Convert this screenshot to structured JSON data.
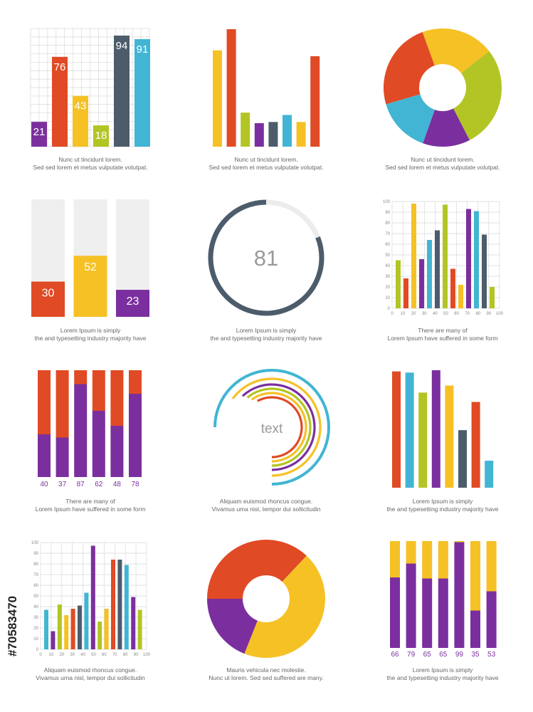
{
  "colors": {
    "purple": "#7b2f9e",
    "red": "#e04a25",
    "yellow": "#f5c125",
    "green": "#b3c524",
    "slate": "#4c5c6b",
    "blue": "#41b5d3",
    "track": "#efefef",
    "grid": "#d8d8d8"
  },
  "stock_id": "#70583470",
  "chart_data": [
    {
      "type": "bar",
      "title": "",
      "values": [
        21,
        76,
        43,
        18,
        94,
        91
      ],
      "labels": [
        "21",
        "76",
        "43",
        "18",
        "94",
        "91"
      ],
      "colors": [
        "purple",
        "red",
        "yellow",
        "green",
        "slate",
        "blue"
      ],
      "ylim": [
        0,
        100
      ],
      "grid": true,
      "caption": [
        "Nunc ut tincidunt lorem.",
        "Sed sed lorem et metus vulputate volutpat."
      ]
    },
    {
      "type": "bar",
      "title": "",
      "values": [
        82,
        100,
        29,
        20,
        21,
        27,
        21,
        77
      ],
      "colors": [
        "yellow",
        "red",
        "green",
        "purple",
        "slate",
        "blue",
        "yellow",
        "red"
      ],
      "ylim": [
        0,
        100
      ],
      "grid": false,
      "caption": [
        "Nunc ut tincidunt lorem.",
        "Sed sed lorem et metus vulputate volutpat."
      ]
    },
    {
      "type": "pie",
      "title": "",
      "donut": true,
      "values": [
        20,
        28,
        13,
        15,
        24
      ],
      "colors": [
        "yellow",
        "green",
        "purple",
        "blue",
        "red"
      ],
      "caption": [
        "Nunc ut tincidunt lorem.",
        "Sed sed lorem et metus vulputate volutpat."
      ]
    },
    {
      "type": "bar",
      "title": "",
      "values": [
        30,
        52,
        23
      ],
      "labels": [
        "30",
        "52",
        "23"
      ],
      "colors": [
        "red",
        "yellow",
        "purple"
      ],
      "ylim": [
        0,
        100
      ],
      "caption": [
        "Lorem Ipsum is simply",
        "the  and typesetting industry majority have"
      ]
    },
    {
      "type": "pie",
      "title": "",
      "gauge": true,
      "value": 81,
      "label": "81",
      "color": "slate",
      "caption": [
        "Lorem Ipsum is simply",
        "the  and typesetting industry majority have"
      ]
    },
    {
      "type": "bar",
      "title": "",
      "values": [
        45,
        28,
        98,
        46,
        64,
        73,
        97,
        37,
        22,
        93,
        91,
        69,
        20
      ],
      "colors": [
        "green",
        "red",
        "yellow",
        "purple",
        "blue",
        "slate",
        "green",
        "red",
        "yellow",
        "purple",
        "blue",
        "slate",
        "green"
      ],
      "xlim": [
        0,
        100
      ],
      "xticks": [
        "0",
        "10",
        "20",
        "30",
        "40",
        "50",
        "60",
        "70",
        "80",
        "90",
        "100"
      ],
      "ylim": [
        0,
        100
      ],
      "yticks": [
        "0",
        "10",
        "20",
        "30",
        "40",
        "50",
        "60",
        "70",
        "80",
        "90",
        "100"
      ],
      "grid": true,
      "caption": [
        "There are many  of",
        "Lorem Ipsum  have suffered  in some form"
      ]
    },
    {
      "type": "bar",
      "title": "",
      "stacked": true,
      "categories": [
        "40",
        "37",
        "87",
        "62",
        "48",
        "78"
      ],
      "series": [
        {
          "color": "purple",
          "values": [
            40,
            37,
            87,
            62,
            48,
            78
          ]
        },
        {
          "color": "red",
          "values": [
            60,
            63,
            13,
            38,
            52,
            22
          ]
        }
      ],
      "ylim": [
        0,
        100
      ],
      "caption": [
        "There are many  of",
        "Lorem Ipsum  have suffered  in some form"
      ]
    },
    {
      "type": "pie",
      "title": "",
      "radial": true,
      "label": "text",
      "values": [
        75,
        65,
        62,
        61,
        60,
        58
      ],
      "colors": [
        "blue",
        "yellow",
        "purple",
        "green",
        "yellow",
        "red"
      ],
      "caption": [
        "Aliquam euismod rhoncus congue.",
        "Vivamus uma nisl,  tempor dui sollicitudin"
      ]
    },
    {
      "type": "bar",
      "title": "",
      "values": [
        99,
        98,
        81,
        100,
        87,
        49,
        73,
        23
      ],
      "colors": [
        "red",
        "blue",
        "green",
        "purple",
        "yellow",
        "slate",
        "red",
        "blue"
      ],
      "ylim": [
        0,
        100
      ],
      "caption": [
        "Lorem Ipsum is simply",
        "the  and typesetting industry majority have"
      ]
    },
    {
      "type": "bar",
      "title": "",
      "values": [
        37,
        17,
        42,
        32,
        38,
        41,
        53,
        97,
        26,
        38,
        84,
        84,
        79,
        49,
        37
      ],
      "colors": [
        "blue",
        "purple",
        "green",
        "yellow",
        "red",
        "slate",
        "blue",
        "purple",
        "green",
        "yellow",
        "red",
        "slate",
        "blue",
        "purple",
        "green"
      ],
      "xlim": [
        0,
        100
      ],
      "xticks": [
        "0",
        "10",
        "20",
        "30",
        "40",
        "50",
        "60",
        "70",
        "80",
        "90",
        "100"
      ],
      "ylim": [
        0,
        100
      ],
      "yticks": [
        "0",
        "10",
        "20",
        "30",
        "40",
        "50",
        "60",
        "70",
        "80",
        "90",
        "100"
      ],
      "grid": true,
      "caption": [
        "Aliquam euismod rhoncus congue.",
        "Vivamus urna nisl,  tempor dui sollicitudin"
      ]
    },
    {
      "type": "pie",
      "title": "",
      "donut": true,
      "values": [
        37,
        44,
        19
      ],
      "colors": [
        "red",
        "yellow",
        "purple"
      ],
      "caption": [
        "Mauris vehicula nec molestie.",
        "Nunc ut  lorem.  Sed sed  suffered  are many."
      ]
    },
    {
      "type": "bar",
      "title": "",
      "stacked": true,
      "categories": [
        "66",
        "79",
        "65",
        "65",
        "99",
        "35",
        "53"
      ],
      "series": [
        {
          "color": "purple",
          "values": [
            66,
            79,
            65,
            65,
            99,
            35,
            53
          ]
        },
        {
          "color": "yellow",
          "values": [
            34,
            21,
            35,
            35,
            1,
            65,
            47
          ]
        }
      ],
      "ylim": [
        0,
        100
      ],
      "caption": [
        "Lorem Ipsum is simply",
        "the  and typesetting industry majority have"
      ]
    }
  ]
}
